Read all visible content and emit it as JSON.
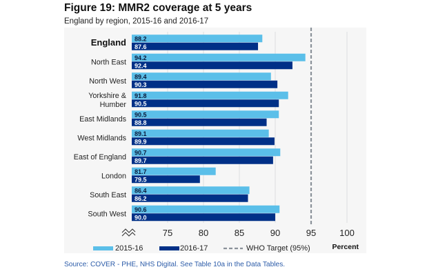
{
  "figure": {
    "title": "Figure 19: MMR2 coverage at 5 years",
    "subtitle": "England by region, 2015-16 and 2016-17",
    "source": "Source: COVER - PHE, NHS Digital. See Table 10a in the Data Tables."
  },
  "chart_data": {
    "type": "bar",
    "orientation": "horizontal",
    "title": "Figure 19: MMR2 coverage at 5 years",
    "subtitle": "England by region, 2015-16 and 2016-17",
    "xlabel": "Percent",
    "ylabel": "",
    "xlim": [
      70,
      100
    ],
    "axis_break": true,
    "xticks": [
      75,
      80,
      85,
      90,
      95,
      100
    ],
    "grid": true,
    "legend_position": "bottom",
    "categories": [
      "England",
      "North East",
      "North West",
      "Yorkshire & Humber",
      "East Midlands",
      "West Midlands",
      "East of England",
      "London",
      "South East",
      "South West"
    ],
    "category_lines": [
      [
        "England"
      ],
      [
        "North East"
      ],
      [
        "North West"
      ],
      [
        "Yorkshire &",
        "Humber"
      ],
      [
        "East Midlands"
      ],
      [
        "West Midlands"
      ],
      [
        "East of England"
      ],
      [
        "London"
      ],
      [
        "South East"
      ],
      [
        "South West"
      ]
    ],
    "bold_categories": [
      "England"
    ],
    "series": [
      {
        "name": "2015-16",
        "color": "#5bbfe9",
        "label_color": "#0b1a3a",
        "values": [
          88.2,
          94.2,
          89.4,
          91.8,
          90.5,
          89.1,
          90.7,
          81.7,
          86.4,
          90.6
        ],
        "labels": [
          "88.2",
          "94.2",
          "89.4",
          "91.8",
          "90.5",
          "89.1",
          "90.7",
          "81.7",
          "86.4",
          "90.6"
        ]
      },
      {
        "name": "2016-17",
        "color": "#003087",
        "label_color": "#ffffff",
        "values": [
          87.6,
          92.4,
          90.3,
          90.5,
          88.8,
          89.9,
          89.7,
          79.5,
          86.2,
          90.0
        ],
        "labels": [
          "87.6",
          "92.4",
          "90.3",
          "90.5",
          "88.8",
          "89.9",
          "89.7",
          "79.5",
          "86.2",
          "90.0"
        ]
      }
    ],
    "reference_lines": [
      {
        "name": "WHO Target (95%)",
        "value": 95,
        "color": "#8a9199",
        "style": "dashed"
      }
    ],
    "legend": [
      "2015-16",
      "2016-17",
      "WHO Target (95%)"
    ]
  }
}
